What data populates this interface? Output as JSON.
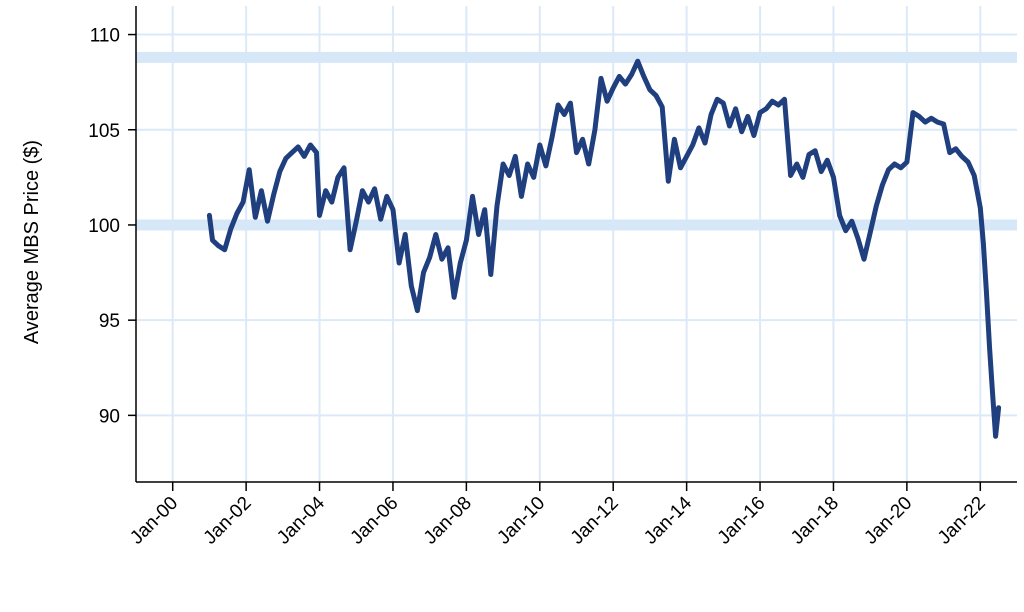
{
  "chart_data": {
    "type": "line",
    "title": "",
    "xlabel": "",
    "ylabel": "Average MBS Price ($)",
    "x_tick_labels": [
      "Jan-00",
      "Jan-02",
      "Jan-04",
      "Jan-06",
      "Jan-08",
      "Jan-10",
      "Jan-12",
      "Jan-14",
      "Jan-16",
      "Jan-18",
      "Jan-20",
      "Jan-22"
    ],
    "x_ticks_year": [
      2000,
      2002,
      2004,
      2006,
      2008,
      2010,
      2012,
      2014,
      2016,
      2018,
      2020,
      2022
    ],
    "y_ticks": [
      90,
      95,
      100,
      105,
      110
    ],
    "xlim": [
      1999.0,
      2023.0
    ],
    "ylim": [
      86.5,
      111.5
    ],
    "grid": true,
    "reference_lines": [
      108.8,
      100.0
    ],
    "colors": {
      "line": "#1f3f7f",
      "grid": "#dce9f7",
      "reference": "#d6e7f7",
      "axis": "#000000"
    },
    "series": [
      {
        "name": "",
        "points": [
          [
            "2001-01",
            100.5
          ],
          [
            "2001-02",
            99.2
          ],
          [
            "2001-04",
            98.9
          ],
          [
            "2001-06",
            98.7
          ],
          [
            "2001-08",
            99.8
          ],
          [
            "2001-10",
            100.6
          ],
          [
            "2001-12",
            101.2
          ],
          [
            "2002-02",
            102.9
          ],
          [
            "2002-04",
            100.4
          ],
          [
            "2002-06",
            101.8
          ],
          [
            "2002-08",
            100.2
          ],
          [
            "2002-10",
            101.6
          ],
          [
            "2002-12",
            102.8
          ],
          [
            "2003-02",
            103.5
          ],
          [
            "2003-04",
            103.8
          ],
          [
            "2003-06",
            104.1
          ],
          [
            "2003-08",
            103.6
          ],
          [
            "2003-10",
            104.2
          ],
          [
            "2003-12",
            103.8
          ],
          [
            "2004-01",
            100.5
          ],
          [
            "2004-03",
            101.8
          ],
          [
            "2004-05",
            101.2
          ],
          [
            "2004-07",
            102.5
          ],
          [
            "2004-09",
            103.0
          ],
          [
            "2004-11",
            98.7
          ],
          [
            "2005-01",
            100.2
          ],
          [
            "2005-03",
            101.8
          ],
          [
            "2005-05",
            101.2
          ],
          [
            "2005-07",
            101.9
          ],
          [
            "2005-09",
            100.3
          ],
          [
            "2005-11",
            101.5
          ],
          [
            "2006-01",
            100.8
          ],
          [
            "2006-03",
            98.0
          ],
          [
            "2006-05",
            99.5
          ],
          [
            "2006-07",
            96.8
          ],
          [
            "2006-09",
            95.5
          ],
          [
            "2006-11",
            97.5
          ],
          [
            "2007-01",
            98.3
          ],
          [
            "2007-03",
            99.5
          ],
          [
            "2007-05",
            98.2
          ],
          [
            "2007-07",
            98.8
          ],
          [
            "2007-09",
            96.2
          ],
          [
            "2007-11",
            98.0
          ],
          [
            "2008-01",
            99.2
          ],
          [
            "2008-03",
            101.5
          ],
          [
            "2008-05",
            99.5
          ],
          [
            "2008-07",
            100.8
          ],
          [
            "2008-09",
            97.4
          ],
          [
            "2008-11",
            101.0
          ],
          [
            "2009-01",
            103.2
          ],
          [
            "2009-03",
            102.6
          ],
          [
            "2009-05",
            103.6
          ],
          [
            "2009-07",
            101.5
          ],
          [
            "2009-09",
            103.2
          ],
          [
            "2009-11",
            102.5
          ],
          [
            "2010-01",
            104.2
          ],
          [
            "2010-03",
            103.1
          ],
          [
            "2010-05",
            104.6
          ],
          [
            "2010-07",
            106.3
          ],
          [
            "2010-09",
            105.8
          ],
          [
            "2010-11",
            106.4
          ],
          [
            "2011-01",
            103.8
          ],
          [
            "2011-03",
            104.5
          ],
          [
            "2011-05",
            103.2
          ],
          [
            "2011-07",
            105.0
          ],
          [
            "2011-09",
            107.7
          ],
          [
            "2011-11",
            106.5
          ],
          [
            "2012-01",
            107.2
          ],
          [
            "2012-03",
            107.8
          ],
          [
            "2012-05",
            107.4
          ],
          [
            "2012-07",
            107.9
          ],
          [
            "2012-09",
            108.6
          ],
          [
            "2012-11",
            107.8
          ],
          [
            "2013-01",
            107.1
          ],
          [
            "2013-03",
            106.8
          ],
          [
            "2013-05",
            106.2
          ],
          [
            "2013-07",
            102.3
          ],
          [
            "2013-09",
            104.5
          ],
          [
            "2013-11",
            103.0
          ],
          [
            "2014-01",
            103.6
          ],
          [
            "2014-03",
            104.2
          ],
          [
            "2014-05",
            105.1
          ],
          [
            "2014-07",
            104.3
          ],
          [
            "2014-09",
            105.8
          ],
          [
            "2014-11",
            106.6
          ],
          [
            "2015-01",
            106.4
          ],
          [
            "2015-03",
            105.2
          ],
          [
            "2015-05",
            106.1
          ],
          [
            "2015-07",
            104.9
          ],
          [
            "2015-09",
            105.7
          ],
          [
            "2015-11",
            104.7
          ],
          [
            "2016-01",
            105.9
          ],
          [
            "2016-03",
            106.1
          ],
          [
            "2016-05",
            106.5
          ],
          [
            "2016-07",
            106.3
          ],
          [
            "2016-09",
            106.6
          ],
          [
            "2016-11",
            102.6
          ],
          [
            "2017-01",
            103.2
          ],
          [
            "2017-03",
            102.5
          ],
          [
            "2017-05",
            103.7
          ],
          [
            "2017-07",
            103.9
          ],
          [
            "2017-09",
            102.8
          ],
          [
            "2017-11",
            103.4
          ],
          [
            "2018-01",
            102.5
          ],
          [
            "2018-03",
            100.5
          ],
          [
            "2018-05",
            99.7
          ],
          [
            "2018-07",
            100.2
          ],
          [
            "2018-09",
            99.3
          ],
          [
            "2018-11",
            98.2
          ],
          [
            "2019-01",
            99.6
          ],
          [
            "2019-03",
            101.0
          ],
          [
            "2019-05",
            102.1
          ],
          [
            "2019-07",
            102.9
          ],
          [
            "2019-09",
            103.2
          ],
          [
            "2019-11",
            103.0
          ],
          [
            "2020-01",
            103.3
          ],
          [
            "2020-03",
            105.9
          ],
          [
            "2020-05",
            105.7
          ],
          [
            "2020-07",
            105.4
          ],
          [
            "2020-09",
            105.6
          ],
          [
            "2020-11",
            105.4
          ],
          [
            "2021-01",
            105.3
          ],
          [
            "2021-03",
            103.8
          ],
          [
            "2021-05",
            104.0
          ],
          [
            "2021-07",
            103.6
          ],
          [
            "2021-09",
            103.3
          ],
          [
            "2021-11",
            102.6
          ],
          [
            "2022-01",
            100.9
          ],
          [
            "2022-02",
            99.0
          ],
          [
            "2022-03",
            96.5
          ],
          [
            "2022-04",
            93.6
          ],
          [
            "2022-05",
            91.2
          ],
          [
            "2022-06",
            88.9
          ],
          [
            "2022-07",
            90.4
          ]
        ]
      }
    ]
  }
}
